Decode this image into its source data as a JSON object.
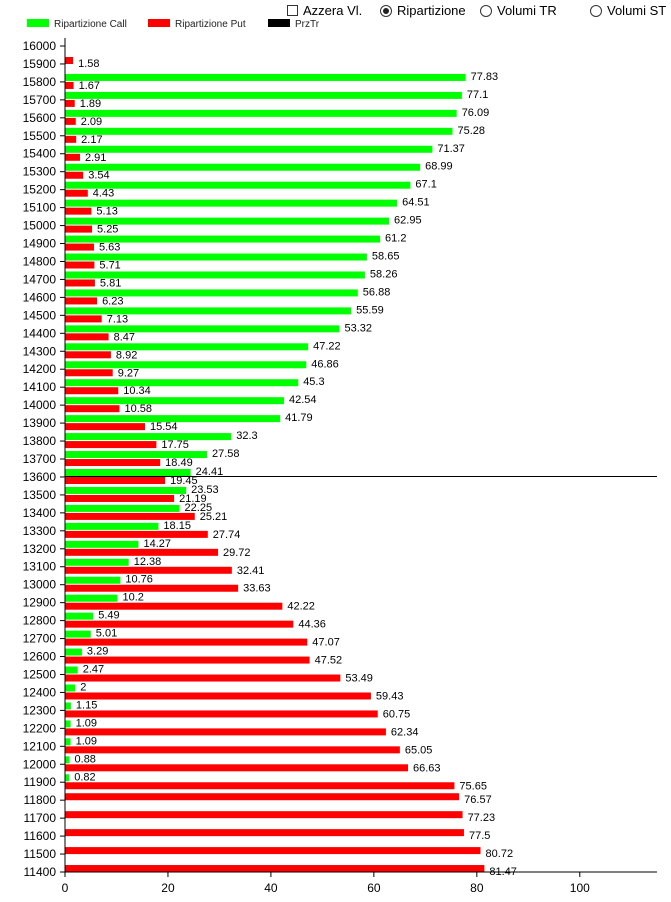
{
  "controls": {
    "reset_label": "Azzera Vl.",
    "radio_options": [
      {
        "label": "Ripartizione",
        "selected": true
      },
      {
        "label": "Volumi TR",
        "selected": false
      },
      {
        "label": "Volumi ST",
        "selected": false
      }
    ]
  },
  "chart_data": {
    "type": "bar",
    "orientation": "horizontal",
    "categories": [
      "16000",
      "15900",
      "15800",
      "15700",
      "15600",
      "15500",
      "15400",
      "15300",
      "15200",
      "15100",
      "15000",
      "14900",
      "14800",
      "14700",
      "14600",
      "14500",
      "14400",
      "14300",
      "14200",
      "14100",
      "14000",
      "13900",
      "13800",
      "13700",
      "13600",
      "13500",
      "13400",
      "13300",
      "13200",
      "13100",
      "13000",
      "12900",
      "12800",
      "12700",
      "12600",
      "12500",
      "12400",
      "12300",
      "12200",
      "12100",
      "12000",
      "11900",
      "11800",
      "11700",
      "11600",
      "11500",
      "11400"
    ],
    "series": [
      {
        "name": "Ripartizione Call",
        "color": "#00ff00",
        "values": [
          null,
          77.83,
          77.1,
          76.09,
          75.28,
          71.37,
          68.99,
          67.1,
          64.51,
          62.95,
          61.2,
          58.65,
          58.26,
          56.88,
          55.59,
          53.32,
          47.22,
          46.86,
          45.3,
          42.54,
          41.79,
          32.3,
          27.58,
          24.41,
          23.53,
          22.25,
          18.15,
          14.27,
          12.38,
          10.76,
          10.2,
          5.49,
          5.01,
          3.29,
          2.47,
          2,
          1.15,
          1.09,
          1.09,
          0.88,
          0.82,
          null,
          null,
          null,
          null,
          null,
          null
        ]
      },
      {
        "name": "Ripartizione Put",
        "color": "#ff0000",
        "values": [
          1.58,
          1.67,
          1.89,
          2.09,
          2.17,
          2.91,
          3.54,
          4.43,
          5.13,
          5.25,
          5.63,
          5.71,
          5.81,
          6.23,
          7.13,
          8.47,
          8.92,
          9.27,
          10.34,
          10.58,
          15.54,
          17.75,
          18.49,
          19.45,
          21.19,
          25.21,
          27.74,
          29.72,
          32.41,
          33.63,
          42.22,
          44.36,
          47.07,
          47.52,
          53.49,
          59.43,
          60.75,
          62.34,
          65.05,
          66.63,
          75.65,
          76.57,
          77.23,
          77.5,
          80.72,
          81.47,
          null
        ]
      },
      {
        "name": "PrzTr",
        "color": "#000000",
        "marker_category": "13700"
      }
    ],
    "xlim": [
      0,
      115
    ],
    "xticks": [
      0,
      20,
      40,
      60,
      80,
      100
    ],
    "legend_position": "top-left"
  }
}
